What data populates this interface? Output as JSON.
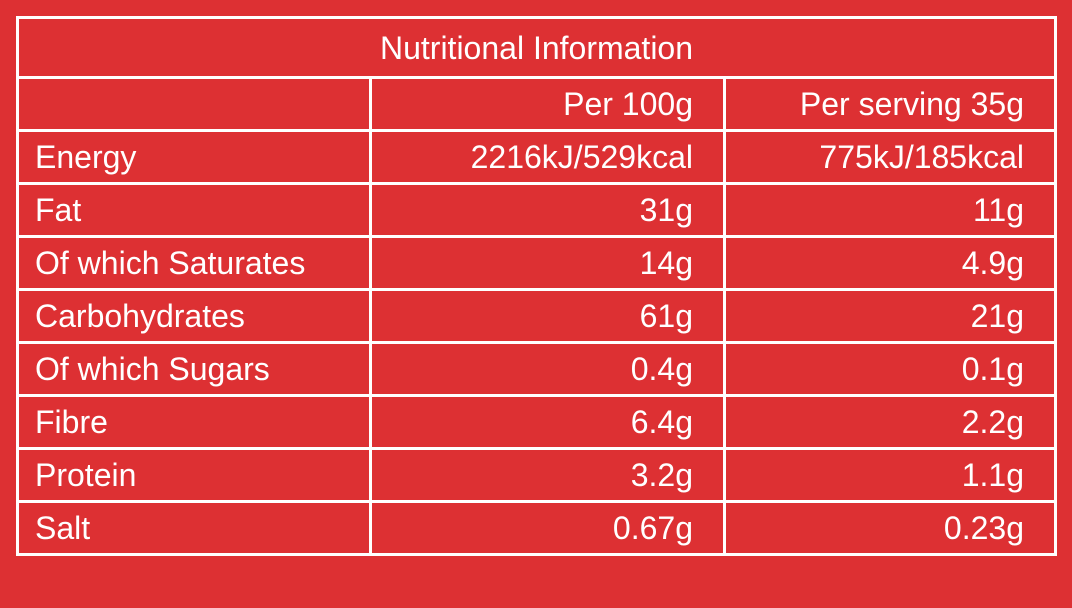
{
  "table": {
    "title": "Nutritional Information",
    "columns": [
      "Per 100g",
      "Per serving 35g"
    ],
    "rows": [
      [
        "Energy",
        "2216kJ/529kcal",
        "775kJ/185kcal"
      ],
      [
        "Fat",
        "31g",
        "11g"
      ],
      [
        "Of which Saturates",
        "14g",
        "4.9g"
      ],
      [
        "Carbohydrates",
        "61g",
        "21g"
      ],
      [
        "Of which Sugars",
        "0.4g",
        "0.1g"
      ],
      [
        "Fibre",
        "6.4g",
        "2.2g"
      ],
      [
        "Protein",
        "3.2g",
        "1.1g"
      ],
      [
        "Salt",
        "0.67g",
        "0.23g"
      ]
    ]
  }
}
